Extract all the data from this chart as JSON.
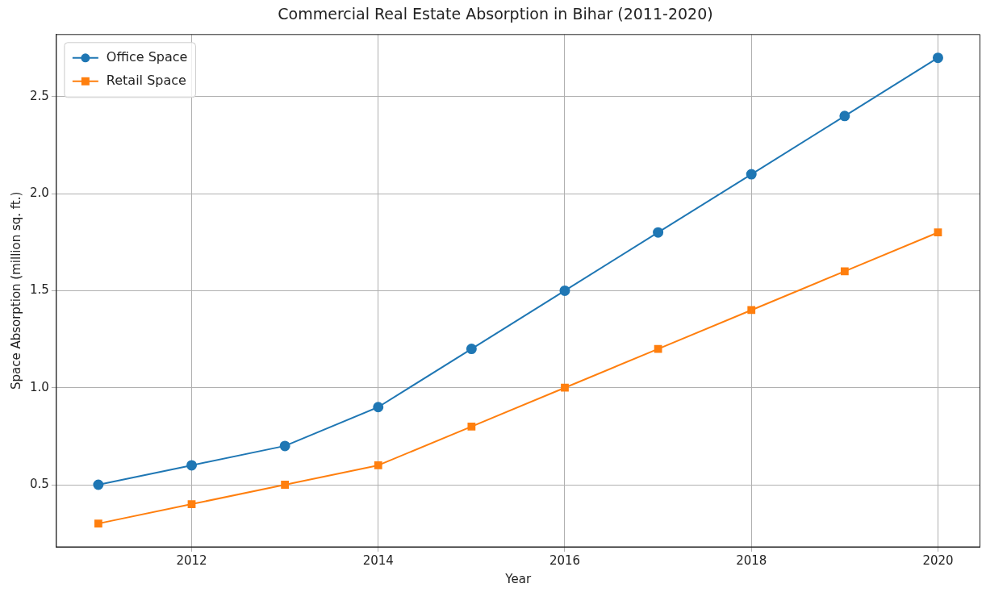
{
  "chart_data": {
    "type": "line",
    "title": "Commercial Real Estate Absorption in Bihar (2011-2020)",
    "xlabel": "Year",
    "ylabel": "Space Absorption (million sq. ft.)",
    "x": [
      2011,
      2012,
      2013,
      2014,
      2015,
      2016,
      2017,
      2018,
      2019,
      2020
    ],
    "series": [
      {
        "name": "Office Space",
        "color": "#1f77b4",
        "marker": "circle",
        "values": [
          0.5,
          0.6,
          0.7,
          0.9,
          1.2,
          1.5,
          1.8,
          2.1,
          2.4,
          2.7
        ]
      },
      {
        "name": "Retail Space",
        "color": "#ff7f0e",
        "marker": "square",
        "values": [
          0.3,
          0.4,
          0.5,
          0.6,
          0.8,
          1.0,
          1.2,
          1.4,
          1.6,
          1.8
        ]
      }
    ],
    "xlim": [
      2010.55,
      2020.45
    ],
    "xticks": [
      2012,
      2014,
      2016,
      2018,
      2020
    ],
    "ylim": [
      0.18,
      2.82
    ],
    "yticks": [
      0.5,
      {
        "value": 1,
        "label": "1.0"
      },
      1.5,
      {
        "value": 2,
        "label": "2.0"
      },
      2.5
    ],
    "grid": true,
    "legend": "top left",
    "line_style": "solid"
  }
}
